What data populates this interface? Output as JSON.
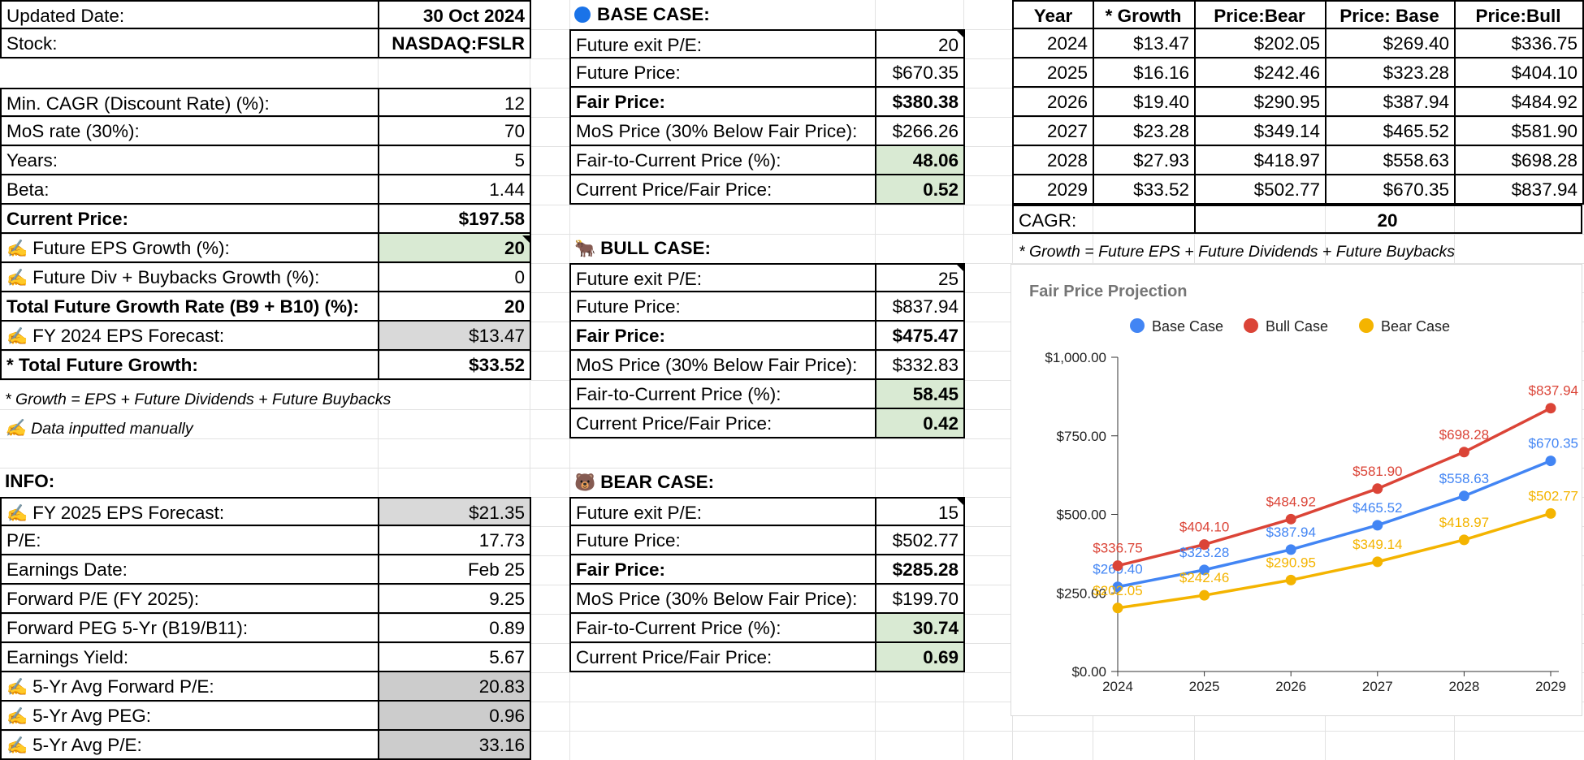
{
  "inputs": {
    "updated_date": {
      "label": "Updated Date:",
      "value": "30 Oct 2024"
    },
    "stock": {
      "label": "Stock:",
      "value": "NASDAQ:FSLR"
    },
    "min_cagr": {
      "label": "Min. CAGR (Discount Rate) (%):",
      "value": "12"
    },
    "mos_rate": {
      "label": "MoS rate (30%):",
      "value": "70"
    },
    "years": {
      "label": "Years:",
      "value": "5"
    },
    "beta": {
      "label": "Beta:",
      "value": "1.44"
    },
    "current_price": {
      "label": "Current Price:",
      "value": "$197.58"
    },
    "eps_growth": {
      "label": "Future EPS Growth (%):",
      "value": "20"
    },
    "div_growth": {
      "label": "Future Div + Buybacks Growth (%):",
      "value": "0"
    },
    "total_growth_rate": {
      "label": "Total Future Growth Rate (B9 + B10) (%):",
      "value": "20"
    },
    "fy2024_eps": {
      "label": "FY 2024 EPS Forecast:",
      "value": "$13.47"
    },
    "total_future_growth": {
      "label": "* Total Future Growth:",
      "value": "$33.52"
    },
    "note1": "* Growth = EPS + Future Dividends + Future Buybacks",
    "note2": "Data inputted manually"
  },
  "info": {
    "title": "INFO:",
    "rows": [
      {
        "label": "FY 2025 EPS Forecast:",
        "value": "$21.35"
      },
      {
        "label": "P/E:",
        "value": "17.73"
      },
      {
        "label": "Earnings Date:",
        "value": "Feb 25"
      },
      {
        "label": "Forward P/E (FY 2025):",
        "value": "9.25"
      },
      {
        "label": "Forward PEG 5-Yr (B19/B11):",
        "value": "0.89"
      },
      {
        "label": "Earnings Yield:",
        "value": "5.67"
      },
      {
        "label": "5-Yr Avg Forward P/E:",
        "value": "20.83"
      },
      {
        "label": "5-Yr Avg PEG:",
        "value": "0.96"
      },
      {
        "label": "5-Yr Avg P/E:",
        "value": "33.16"
      }
    ]
  },
  "cases": {
    "base": {
      "title": "BASE CASE:",
      "rows": [
        {
          "label": "Future exit P/E:",
          "value": "20"
        },
        {
          "label": "Future Price:",
          "value": "$670.35"
        },
        {
          "label": "Fair Price:",
          "value": "$380.38"
        },
        {
          "label": "MoS Price (30% Below Fair Price):",
          "value": "$266.26"
        },
        {
          "label": "Fair-to-Current Price (%):",
          "value": "48.06"
        },
        {
          "label": "Current Price/Fair Price:",
          "value": "0.52"
        }
      ]
    },
    "bull": {
      "title": "BULL CASE:",
      "rows": [
        {
          "label": "Future exit P/E:",
          "value": "25"
        },
        {
          "label": "Future Price:",
          "value": "$837.94"
        },
        {
          "label": "Fair Price:",
          "value": "$475.47"
        },
        {
          "label": "MoS Price (30% Below Fair Price):",
          "value": "$332.83"
        },
        {
          "label": "Fair-to-Current Price (%):",
          "value": "58.45"
        },
        {
          "label": "Current Price/Fair Price:",
          "value": "0.42"
        }
      ]
    },
    "bear": {
      "title": "BEAR CASE:",
      "rows": [
        {
          "label": "Future exit P/E:",
          "value": "15"
        },
        {
          "label": "Future Price:",
          "value": "$502.77"
        },
        {
          "label": "Fair Price:",
          "value": "$285.28"
        },
        {
          "label": "MoS Price (30% Below Fair Price):",
          "value": "$199.70"
        },
        {
          "label": "Fair-to-Current Price (%):",
          "value": "30.74"
        },
        {
          "label": "Current Price/Fair Price:",
          "value": "0.69"
        }
      ]
    }
  },
  "projection": {
    "headers": [
      "Year",
      "* Growth",
      "Price:Bear",
      "Price: Base",
      "Price:Bull"
    ],
    "rows": [
      [
        "2024",
        "$13.47",
        "$202.05",
        "$269.40",
        "$336.75"
      ],
      [
        "2025",
        "$16.16",
        "$242.46",
        "$323.28",
        "$404.10"
      ],
      [
        "2026",
        "$19.40",
        "$290.95",
        "$387.94",
        "$484.92"
      ],
      [
        "2027",
        "$23.28",
        "$349.14",
        "$465.52",
        "$581.90"
      ],
      [
        "2028",
        "$27.93",
        "$418.97",
        "$558.63",
        "$698.28"
      ],
      [
        "2029",
        "$33.52",
        "$502.77",
        "$670.35",
        "$837.94"
      ]
    ],
    "cagr_label": "CAGR:",
    "cagr_value": "20",
    "note": "* Growth = Future EPS + Future Dividends + Future Buybacks"
  },
  "colors": {
    "base": "#4285f4",
    "bull": "#db4437",
    "bear": "#f4b400",
    "green_cell": "#d9ead3",
    "gray_cell": "#d9d9d9"
  },
  "icons": {
    "manual": "writing-hand-icon",
    "base": "blue-circle-icon",
    "bull": "ox-icon",
    "bear": "bear-icon"
  },
  "chart_data": {
    "type": "line",
    "title": "Fair Price Projection",
    "x": [
      "2024",
      "2025",
      "2026",
      "2027",
      "2028",
      "2029"
    ],
    "series": [
      {
        "name": "Base Case",
        "values": [
          269.4,
          323.28,
          387.94,
          465.52,
          558.63,
          670.35
        ],
        "labels": [
          "$269.40",
          "$323.28",
          "$387.94",
          "$465.52",
          "$558.63",
          "$670.35"
        ]
      },
      {
        "name": "Bull Case",
        "values": [
          336.75,
          404.1,
          484.92,
          581.9,
          698.28,
          837.94
        ],
        "labels": [
          "$336.75",
          "$404.10",
          "$484.92",
          "$581.90",
          "$698.28",
          "$837.94"
        ]
      },
      {
        "name": "Bear Case",
        "values": [
          202.05,
          242.46,
          290.95,
          349.14,
          418.97,
          502.77
        ],
        "labels": [
          "$202.05",
          "$242.46",
          "$290.95",
          "$349.14",
          "$418.97",
          "$502.77"
        ]
      }
    ],
    "ylim": [
      0,
      1000
    ],
    "yticks": [
      "$0.00",
      "$250.00",
      "$500.00",
      "$750.00",
      "$1,000.00"
    ],
    "grid": false,
    "legend": "top"
  }
}
